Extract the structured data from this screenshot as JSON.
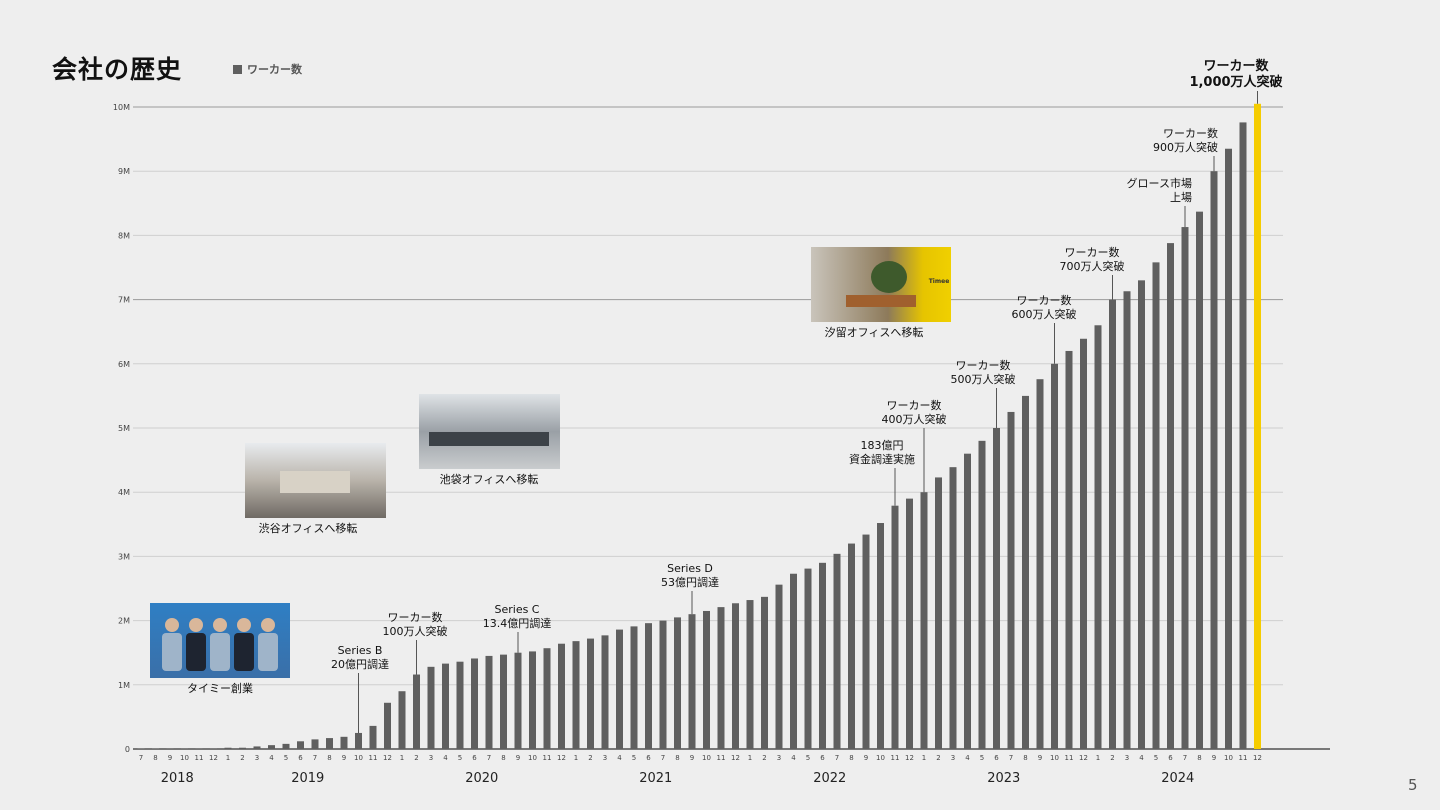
{
  "title": "会社の歴史",
  "legend_label": "ワーカー数",
  "page_number": "5",
  "colors": {
    "bar": "#5f5f5f",
    "highlight": "#f5cc00",
    "grid": "#cfcfcf",
    "grid_strong": "#9a9a9a"
  },
  "chart_data": {
    "type": "bar",
    "title": "会社の歴史",
    "series_name": "ワーカー数",
    "ylim": [
      0,
      10000000
    ],
    "yticks": [
      "0",
      "1M",
      "2M",
      "3M",
      "4M",
      "5M",
      "6M",
      "7M",
      "8M",
      "9M",
      "10M"
    ],
    "years": [
      {
        "label": "2018",
        "first_index": 0,
        "months": 6
      },
      {
        "label": "2019",
        "first_index": 6,
        "months": 12
      },
      {
        "label": "2020",
        "first_index": 18,
        "months": 12
      },
      {
        "label": "2021",
        "first_index": 30,
        "months": 12
      },
      {
        "label": "2022",
        "first_index": 42,
        "months": 12
      },
      {
        "label": "2023",
        "first_index": 54,
        "months": 12
      },
      {
        "label": "2024",
        "first_index": 66,
        "months": 12
      }
    ],
    "month_labels": [
      "7",
      "8",
      "9",
      "10",
      "11",
      "12",
      "1",
      "2",
      "3",
      "4",
      "5",
      "6",
      "7",
      "8",
      "9",
      "10",
      "11",
      "12",
      "1",
      "2",
      "3",
      "4",
      "5",
      "6",
      "7",
      "8",
      "9",
      "10",
      "11",
      "12",
      "1",
      "2",
      "3",
      "4",
      "5",
      "6",
      "7",
      "8",
      "9",
      "10",
      "11",
      "12",
      "1",
      "2",
      "3",
      "4",
      "5",
      "6",
      "7",
      "8",
      "9",
      "10",
      "11",
      "12",
      "1",
      "2",
      "3",
      "4",
      "5",
      "6",
      "7",
      "8",
      "9",
      "10",
      "11",
      "12",
      "1",
      "2",
      "3",
      "4",
      "5",
      "6",
      "7",
      "8",
      "9",
      "10",
      "11",
      "12"
    ],
    "values_millions": [
      0.0,
      0.0,
      0.01,
      0.01,
      0.01,
      0.01,
      0.02,
      0.02,
      0.04,
      0.06,
      0.08,
      0.12,
      0.15,
      0.17,
      0.19,
      0.25,
      0.36,
      0.72,
      0.9,
      1.16,
      1.28,
      1.33,
      1.36,
      1.41,
      1.45,
      1.47,
      1.5,
      1.52,
      1.57,
      1.64,
      1.68,
      1.72,
      1.77,
      1.86,
      1.91,
      1.96,
      2.0,
      2.05,
      2.1,
      2.15,
      2.21,
      2.27,
      2.32,
      2.37,
      2.56,
      2.73,
      2.81,
      2.9,
      3.04,
      3.2,
      3.34,
      3.52,
      3.79,
      3.9,
      4.0,
      4.23,
      4.39,
      4.6,
      4.8,
      5.0,
      5.25,
      5.5,
      5.76,
      6.0,
      6.2,
      6.39,
      6.6,
      7.0,
      7.13,
      7.3,
      7.58,
      7.88,
      8.13,
      8.37,
      9.0,
      9.35,
      9.76,
      10.05
    ],
    "highlight_index": 77,
    "annotations": [
      {
        "index": 15,
        "lines": [
          "Series B",
          "20億円調達"
        ]
      },
      {
        "index": 19,
        "lines": [
          "ワーカー数",
          "100万人突破"
        ]
      },
      {
        "index": 26,
        "lines": [
          "Series C",
          "13.4億円調達"
        ]
      },
      {
        "index": 38,
        "lines": [
          "Series D",
          "53億円調達"
        ]
      },
      {
        "index": 52,
        "lines": [
          "183億円",
          "資金調達実施"
        ]
      },
      {
        "index": 54,
        "lines": [
          "ワーカー数",
          "400万人突破"
        ]
      },
      {
        "index": 59,
        "lines": [
          "ワーカー数",
          "500万人突破"
        ]
      },
      {
        "index": 63,
        "lines": [
          "ワーカー数",
          "600万人突破"
        ]
      },
      {
        "index": 67,
        "lines": [
          "ワーカー数",
          "700万人突破"
        ]
      },
      {
        "index": 72,
        "lines": [
          "グロース市場",
          "上場"
        ]
      },
      {
        "index": 74,
        "lines": [
          "ワーカー数",
          "900万人突破"
        ]
      },
      {
        "index": 77,
        "lines": [
          "ワーカー数",
          "1,000万人突破"
        ]
      }
    ],
    "photo_events": [
      {
        "label": "タイミー創業",
        "photo": "team-photo"
      },
      {
        "label": "渋谷オフィスへ移転",
        "photo": "shibuya-office-photo"
      },
      {
        "label": "池袋オフィスへ移転",
        "photo": "ikebukuro-office-photo"
      },
      {
        "label": "汐留オフィスへ移転",
        "photo": "shiodome-office-photo",
        "sign_text": "Timee"
      }
    ]
  }
}
